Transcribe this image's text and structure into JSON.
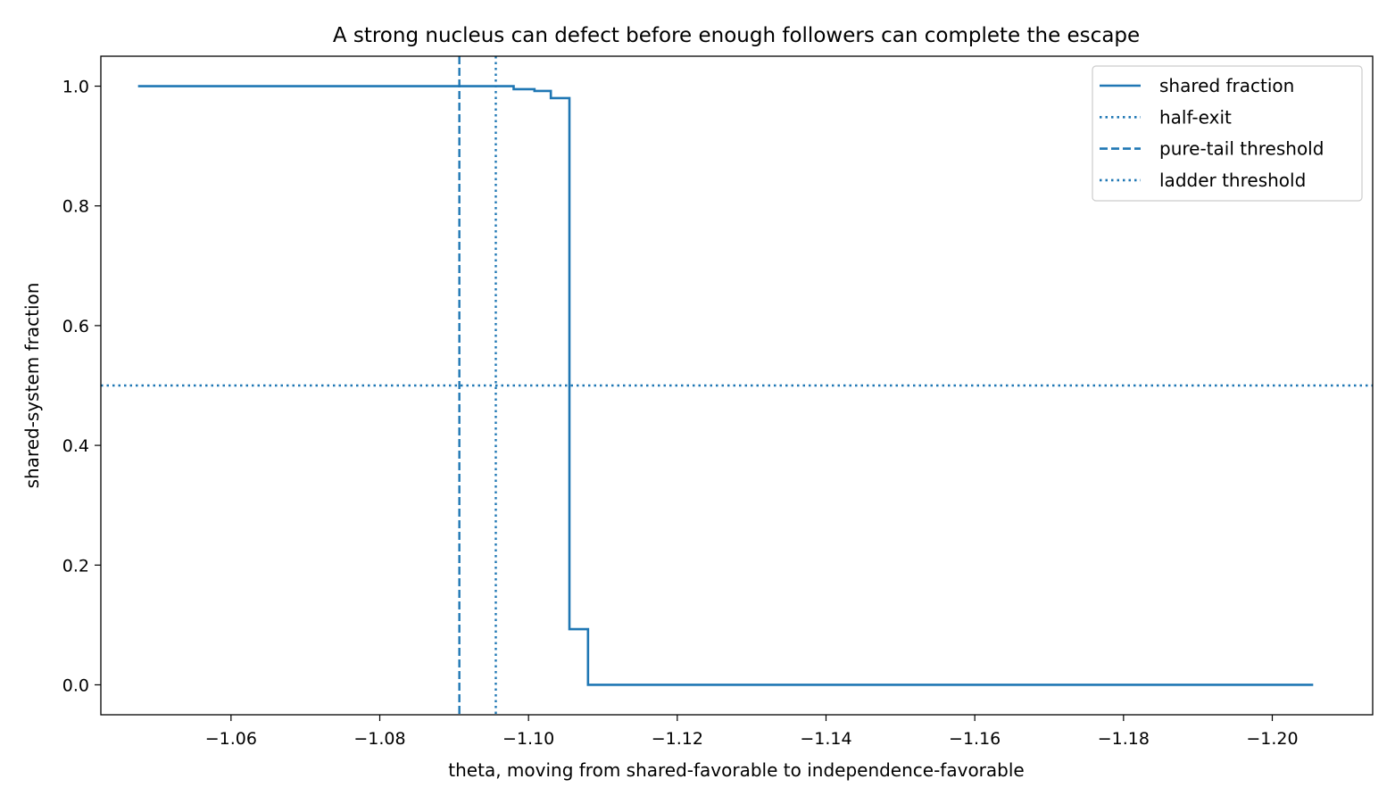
{
  "chart_data": {
    "type": "line",
    "title": "A strong nucleus can defect before enough followers can complete the escape",
    "xlabel": "theta, moving from shared-favorable to independence-favorable",
    "ylabel": "shared-system fraction",
    "x_axis_inverted": true,
    "xlim": [
      -1.0425,
      -1.2135
    ],
    "ylim": [
      -0.05,
      1.05
    ],
    "x_ticks": [
      -1.06,
      -1.08,
      -1.1,
      -1.12,
      -1.14,
      -1.16,
      -1.18,
      -1.2
    ],
    "x_tick_labels": [
      "−1.06",
      "−1.08",
      "−1.10",
      "−1.12",
      "−1.14",
      "−1.16",
      "−1.18",
      "−1.20"
    ],
    "y_ticks": [
      0.0,
      0.2,
      0.4,
      0.6,
      0.8,
      1.0
    ],
    "y_tick_labels": [
      "0.0",
      "0.2",
      "0.4",
      "0.6",
      "0.8",
      "1.0"
    ],
    "grid": false,
    "legend_position": "top-right",
    "color": "#1f77b4",
    "series": [
      {
        "name": "shared fraction",
        "style": "solid",
        "step": "post",
        "x": [
          -1.0475,
          -1.098,
          -1.1008,
          -1.103,
          -1.1055,
          -1.108,
          -1.2055
        ],
        "y": [
          1.0,
          0.995,
          0.992,
          0.98,
          0.093,
          0.0,
          0.0
        ]
      }
    ],
    "reference_lines": [
      {
        "name": "half-exit",
        "orientation": "horizontal",
        "value": 0.5,
        "style": "dotted"
      },
      {
        "name": "pure-tail threshold",
        "orientation": "vertical",
        "value": -1.0907,
        "style": "dashed"
      },
      {
        "name": "ladder threshold",
        "orientation": "vertical",
        "value": -1.0956,
        "style": "dotted"
      }
    ],
    "legend": [
      {
        "label": "shared fraction",
        "style": "solid"
      },
      {
        "label": "half-exit",
        "style": "dotted"
      },
      {
        "label": "pure-tail threshold",
        "style": "dashed"
      },
      {
        "label": "ladder threshold",
        "style": "dotted"
      }
    ]
  }
}
